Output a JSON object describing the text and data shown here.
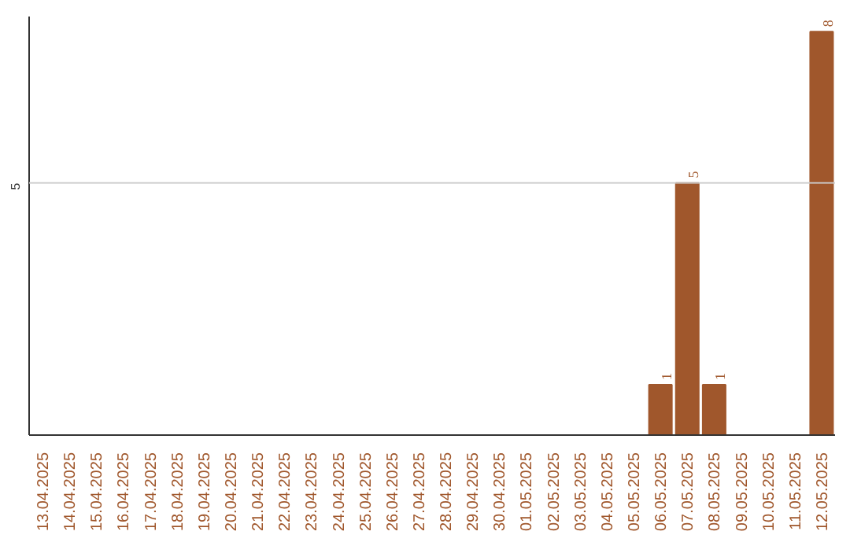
{
  "chart_data": {
    "type": "bar",
    "categories": [
      "13.04.2025",
      "14.04.2025",
      "15.04.2025",
      "16.04.2025",
      "17.04.2025",
      "18.04.2025",
      "19.04.2025",
      "20.04.2025",
      "21.04.2025",
      "22.04.2025",
      "23.04.2025",
      "24.04.2025",
      "25.04.2025",
      "26.04.2025",
      "27.04.2025",
      "28.04.2025",
      "29.04.2025",
      "30.04.2025",
      "01.05.2025",
      "02.05.2025",
      "03.05.2025",
      "04.05.2025",
      "05.05.2025",
      "06.05.2025",
      "07.05.2025",
      "08.05.2025",
      "09.05.2025",
      "10.05.2025",
      "11.05.2025",
      "12.05.2025"
    ],
    "values": [
      null,
      null,
      null,
      null,
      null,
      null,
      null,
      null,
      null,
      null,
      null,
      null,
      null,
      null,
      null,
      null,
      null,
      null,
      null,
      null,
      null,
      null,
      null,
      1,
      5,
      1,
      null,
      null,
      null,
      8
    ],
    "data_labels": true,
    "ylim": [
      0,
      8.3
    ],
    "ref_lines": [
      {
        "axis": "y",
        "value": 5,
        "label": "5",
        "color": "#cccccc"
      }
    ],
    "color": "#a0572c"
  }
}
